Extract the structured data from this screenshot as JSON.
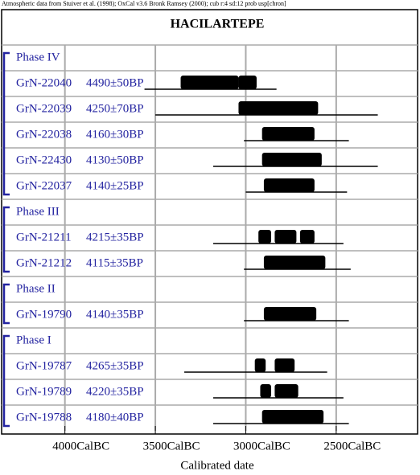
{
  "chart_data": {
    "type": "range",
    "header": "Atmospheric data from Stuiver et al. (1998); OxCal v3.6 Bronk Ramsey (2000); cub r:4 sd:12 prob usp[chron]",
    "title": "HACILARTEPE",
    "x_label": "Calibrated date",
    "xlim": [
      4350,
      2050
    ],
    "xticks": [
      {
        "value": 4000,
        "label": "4000CalBC"
      },
      {
        "value": 3500,
        "label": "3500CalBC"
      },
      {
        "value": 3000,
        "label": "3000CalBC"
      },
      {
        "value": 2500,
        "label": "2500CalBC"
      }
    ],
    "grid": true,
    "color": "#000000",
    "phases": [
      {
        "name": "Phase IV",
        "samples": [
          {
            "lab": "GrN-22040",
            "date": "4490±50BP",
            "range": [
              3560,
              2830
            ],
            "blobs": [
              [
                3360,
                3040
              ],
              [
                3040,
                2940
              ]
            ]
          },
          {
            "lab": "GrN-22039",
            "date": "4250±70BP",
            "range": [
              3500,
              2270
            ],
            "blobs": [
              [
                3040,
                2600
              ]
            ]
          },
          {
            "lab": "GrN-22038",
            "date": "4160±30BP",
            "range": [
              3010,
              2430
            ],
            "blobs": [
              [
                2910,
                2620
              ]
            ]
          },
          {
            "lab": "GrN-22430",
            "date": "4130±50BP",
            "range": [
              3180,
              2270
            ],
            "blobs": [
              [
                2910,
                2580
              ]
            ]
          },
          {
            "lab": "GrN-22037",
            "date": "4140±25BP",
            "range": [
              3000,
              2440
            ],
            "blobs": [
              [
                2900,
                2620
              ]
            ]
          }
        ]
      },
      {
        "name": "Phase III",
        "samples": [
          {
            "lab": "GrN-21211",
            "date": "4215±35BP",
            "range": [
              3180,
              2460
            ],
            "blobs": [
              [
                2930,
                2860
              ],
              [
                2840,
                2720
              ],
              [
                2700,
                2620
              ]
            ]
          },
          {
            "lab": "GrN-21212",
            "date": "4115±35BP",
            "range": [
              3010,
              2420
            ],
            "blobs": [
              [
                2900,
                2560
              ]
            ]
          }
        ]
      },
      {
        "name": "Phase II",
        "samples": [
          {
            "lab": "GrN-19790",
            "date": "4140±35BP",
            "range": [
              3010,
              2430
            ],
            "blobs": [
              [
                2900,
                2610
              ]
            ]
          }
        ]
      },
      {
        "name": "Phase I",
        "samples": [
          {
            "lab": "GrN-19787",
            "date": "4265±35BP",
            "range": [
              3340,
              2550
            ],
            "blobs": [
              [
                2950,
                2890
              ],
              [
                2840,
                2730
              ]
            ]
          },
          {
            "lab": "GrN-19789",
            "date": "4220±35BP",
            "range": [
              3180,
              2460
            ],
            "blobs": [
              [
                2920,
                2860
              ],
              [
                2840,
                2710
              ]
            ]
          },
          {
            "lab": "GrN-19788",
            "date": "4180±40BP",
            "range": [
              3180,
              2430
            ],
            "blobs": [
              [
                2910,
                2570
              ]
            ]
          }
        ]
      }
    ]
  }
}
